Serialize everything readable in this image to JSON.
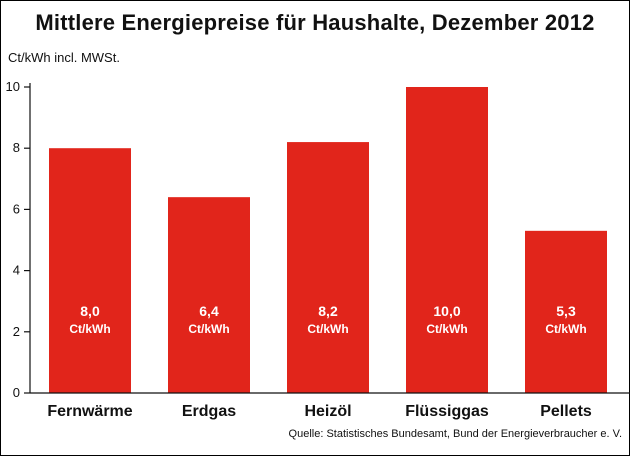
{
  "chart_data": {
    "type": "bar",
    "title": "Mittlere Energiepreise für Haushalte, Dezember 2012",
    "ylabel": "Ct/kWh incl. MWSt.",
    "xlabel": "",
    "categories": [
      "Fernwärme",
      "Erdgas",
      "Heizöl",
      "Flüssiggas",
      "Pellets"
    ],
    "values": [
      8.0,
      6.4,
      8.2,
      10.0,
      5.3
    ],
    "value_labels": [
      "8,0",
      "6,4",
      "8,2",
      "10,0",
      "5,3"
    ],
    "value_unit": "Ct/kWh",
    "ylim": [
      0,
      10
    ],
    "yticks": [
      0,
      2,
      4,
      6,
      8,
      10
    ],
    "grid": false,
    "legend": "none",
    "bar_color": "#e1251b",
    "source": "Quelle: Statistisches Bundesamt, Bund der Energieverbraucher e. V."
  }
}
